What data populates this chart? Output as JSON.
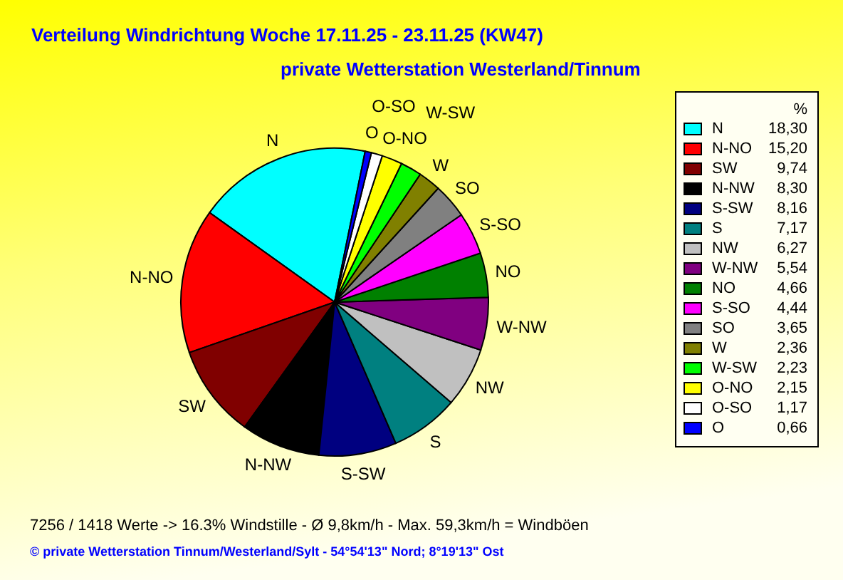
{
  "chart_data": {
    "type": "pie",
    "title": "Verteilung Windrichtung   Woche 17.11.25 - 23.11.25 (KW47)",
    "subtitle": "private Wetterstation Westerland/Tinnum",
    "categories": [
      "N",
      "N-NO",
      "SW",
      "N-NW",
      "S-SW",
      "S",
      "NW",
      "W-NW",
      "NO",
      "S-SO",
      "SO",
      "W",
      "W-SW",
      "O-NO",
      "O-SO",
      "O"
    ],
    "values": [
      18.3,
      15.2,
      9.74,
      8.3,
      8.16,
      7.17,
      6.27,
      5.54,
      4.66,
      4.44,
      3.65,
      2.36,
      2.23,
      2.15,
      1.17,
      0.66
    ],
    "value_labels": [
      "18,30",
      "15,20",
      "9,74",
      "8,30",
      "8,16",
      "7,17",
      "6,27",
      "5,54",
      "4,66",
      "4,44",
      "3,65",
      "2,36",
      "2,23",
      "2,15",
      "1,17",
      "0,66"
    ],
    "colors": [
      "#00ffff",
      "#ff0000",
      "#800000",
      "#000000",
      "#000080",
      "#008080",
      "#c0c0c0",
      "#800080",
      "#008000",
      "#ff00ff",
      "#808080",
      "#808000",
      "#00ff00",
      "#ffff00",
      "#ffffff",
      "#0000ff"
    ],
    "legend_title": "%",
    "legend": "right",
    "annotations": [
      "7256 / 1418 Werte  -> 16.3% Windstille   -   Ø 9,8km/h  -  Max. 59,3km/h = Windböen",
      "© private Wetterstation Tinnum/Westerland/Sylt  -  54°54'13\" Nord; 8°19'13\" Ost"
    ]
  }
}
